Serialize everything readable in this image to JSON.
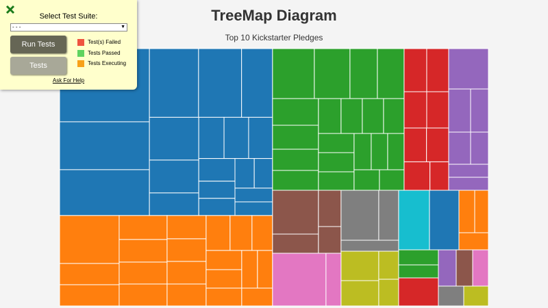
{
  "panel": {
    "heading": "Select Test Suite:",
    "select_option": "- - -",
    "run_button": "Run Tests",
    "tests_button": "Tests",
    "legend": [
      {
        "label": "Test(s) Failed",
        "color": "#ef5340"
      },
      {
        "label": "Tests Passed",
        "color": "#5fd35f"
      },
      {
        "label": "Tests Executing",
        "color": "#f7a11a"
      }
    ],
    "help_link": "Ask For Help"
  },
  "chart_data": {
    "type": "treemap",
    "title": "TreeMap Diagram",
    "subtitle": "Top 10 Kickstarter Pledges",
    "groups": [
      {
        "color": "#1f77b4",
        "values": [
          14017,
          9170,
          8777,
          7200,
          6300,
          4536,
          4500,
          3456,
          2376,
          2220,
          2160,
          2100,
          1749,
          1325,
          1325,
          1218,
          1155,
          1100,
          1092
        ]
      },
      {
        "color": "#ff7f0e",
        "values": [
          6090,
          2697,
          2697,
          2450,
          2310,
          2240,
          2240,
          1938,
          1881,
          1881,
          1824,
          1785,
          1632,
          1530,
          1456,
          1404,
          1352,
          1265,
          1210,
          1170
        ]
      },
      {
        "color": "#2ca02c",
        "values": [
          4453,
          3796,
          2920,
          2847,
          2613,
          2345,
          2077,
          1943,
          1683,
          1581,
          1581,
          1530,
          1456,
          1456,
          1404,
          1325,
          1272,
          1272,
          1110,
          1080
        ]
      },
      {
        "color": "#d62728",
        "values": [
          2079,
          2016,
          1749,
          1696,
          1617,
          1596,
          1568,
          1134
        ]
      },
      {
        "color": "#9467bd",
        "values": [
          3422,
          2016,
          1638,
          1504,
          1222,
          1102,
          1102
        ]
      },
      {
        "color": "#8c564b",
        "values": [
          4288,
          1876,
          1749,
          1287
        ]
      },
      {
        "color": "#e377c2",
        "values": [
          6006,
          1694
        ]
      },
      {
        "color": "#7f7f7f",
        "values": [
          4015,
          2117,
          1344
        ]
      },
      {
        "color": "#bcbd22",
        "values": [
          2365,
          2035,
          1189,
          1131
        ]
      },
      {
        "color": "#17becf",
        "values": [
          3915
        ]
      },
      {
        "color": "#1f77b4",
        "values": [
          3741
        ]
      },
      {
        "color": "#ff7f0e",
        "values": [
          1426,
          1240,
          1075
        ]
      },
      {
        "color": "#2ca02c",
        "values": [
          1276,
          1102
        ]
      },
      {
        "color": "#d62728",
        "values": [
          2378
        ]
      },
      {
        "color": "#9467bd",
        "values": [
          1378
        ]
      },
      {
        "color": "#8c564b",
        "values": [
          1272
        ]
      },
      {
        "color": "#e377c2",
        "values": [
          1219
        ]
      },
      {
        "color": "#7f7f7f",
        "values": [
          1073
        ]
      },
      {
        "color": "#bcbd22",
        "values": [
          1044
        ]
      }
    ]
  }
}
